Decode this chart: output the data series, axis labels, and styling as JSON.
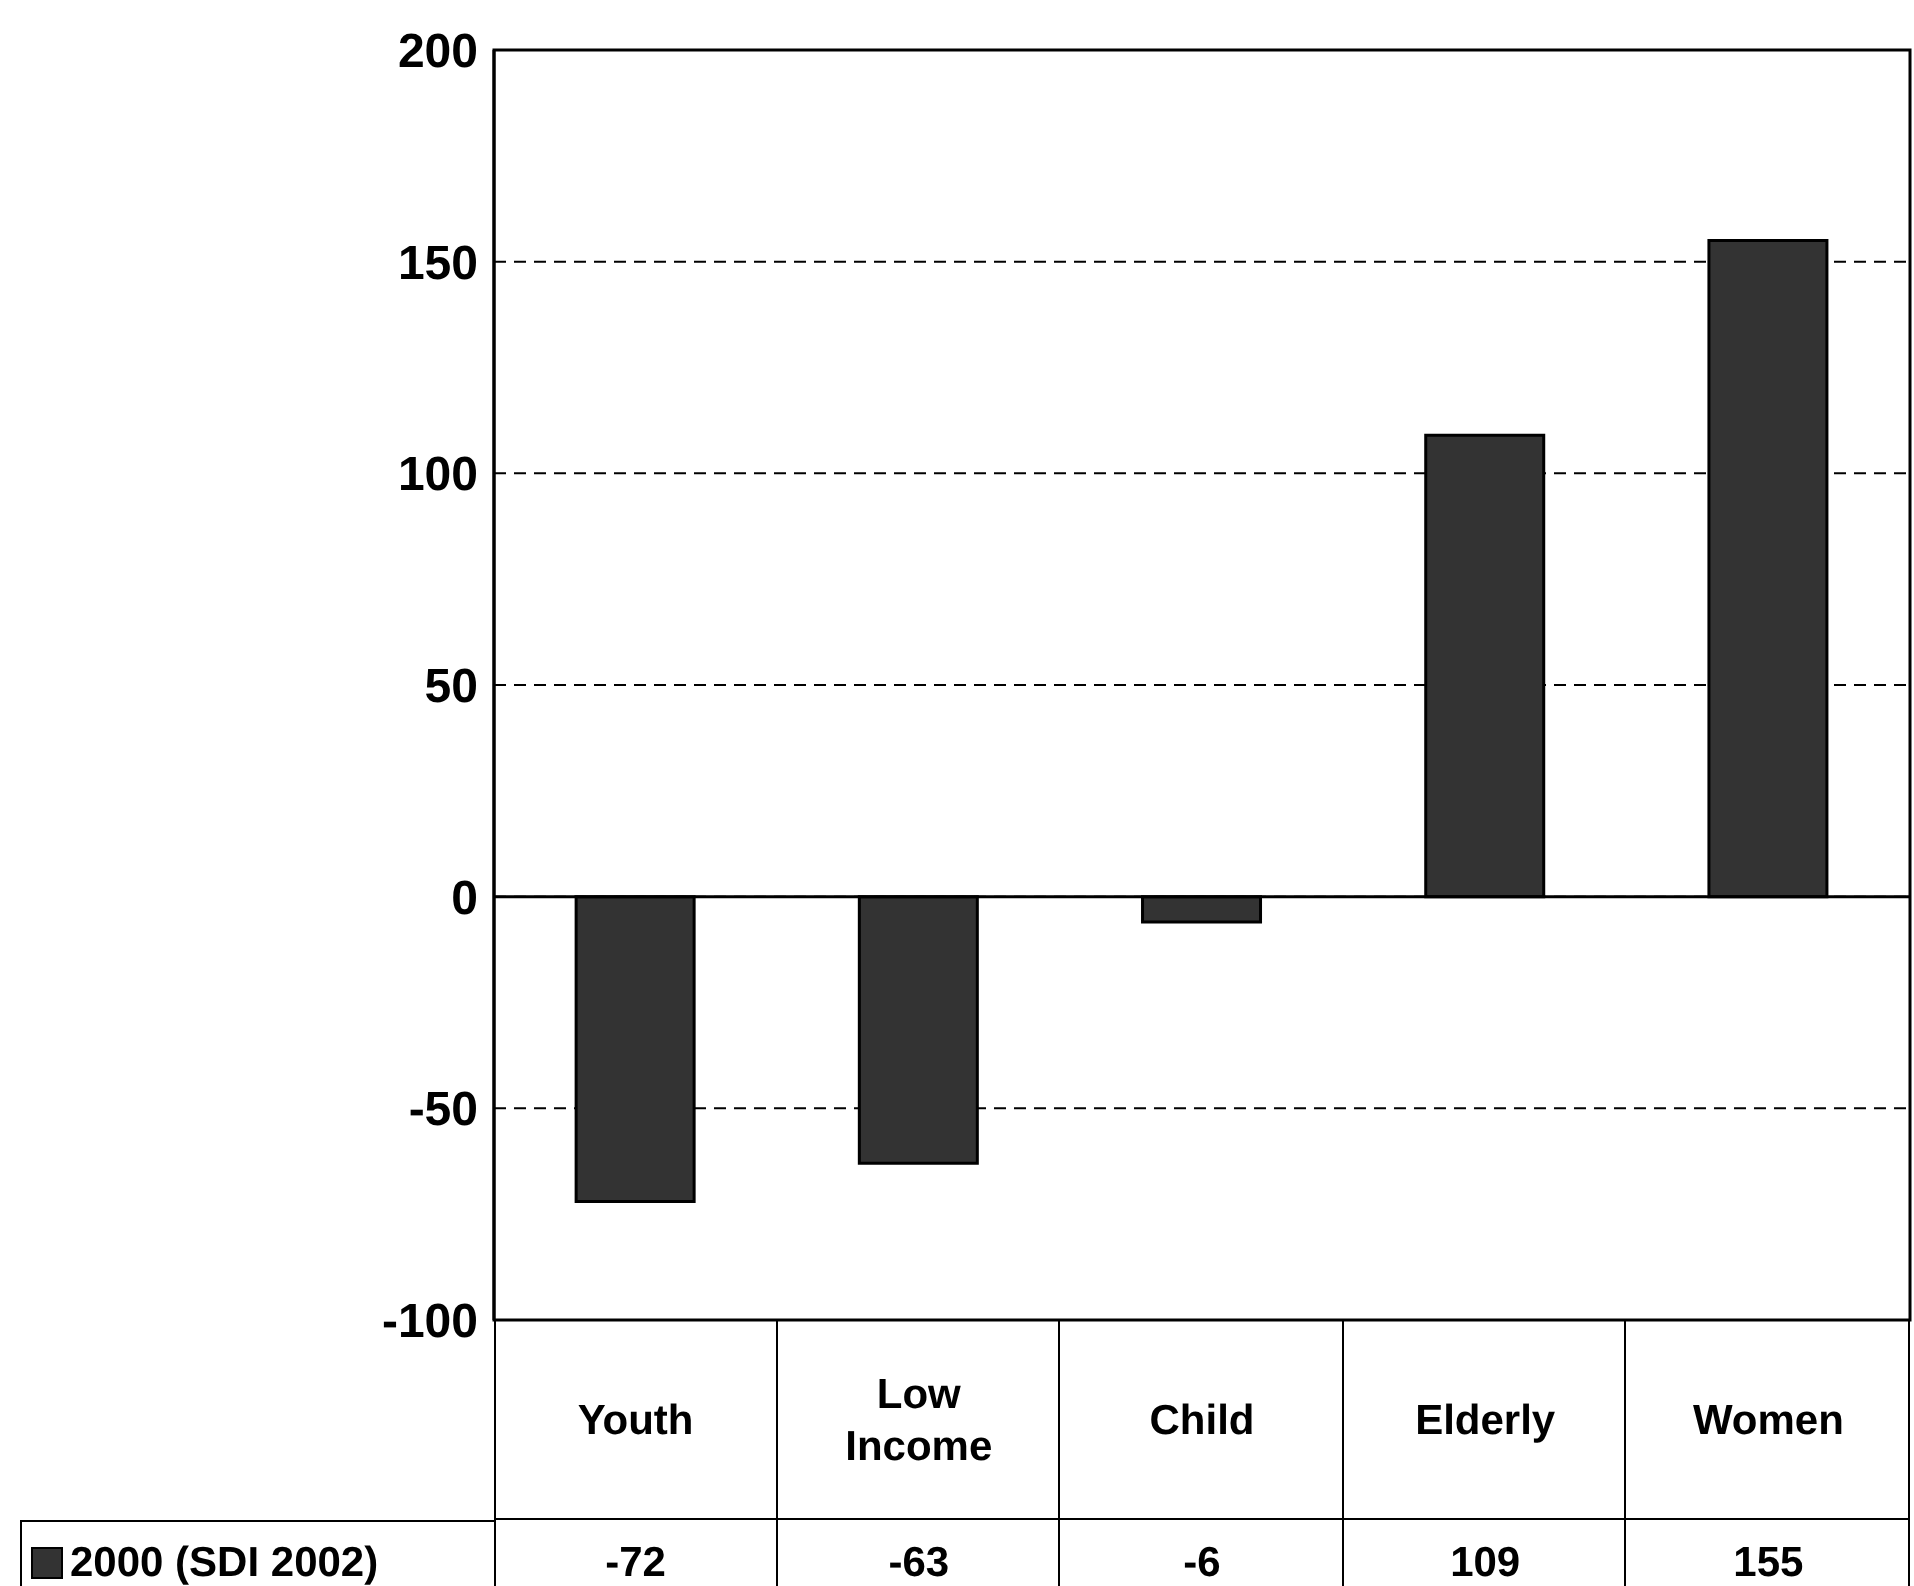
{
  "chart_data": {
    "type": "bar",
    "categories": [
      "Youth",
      "Low Income",
      "Child",
      "Elderly",
      "Women"
    ],
    "series": [
      {
        "name": "2000 (SDI 2002)",
        "color": "#333333",
        "values": [
          -72,
          -63,
          -6,
          109,
          155
        ]
      }
    ],
    "ylim": [
      -100,
      200
    ],
    "yticks": [
      -100,
      -50,
      0,
      50,
      100,
      150,
      200
    ],
    "grid": "y",
    "legend": "bottom left",
    "data_labels": true
  }
}
